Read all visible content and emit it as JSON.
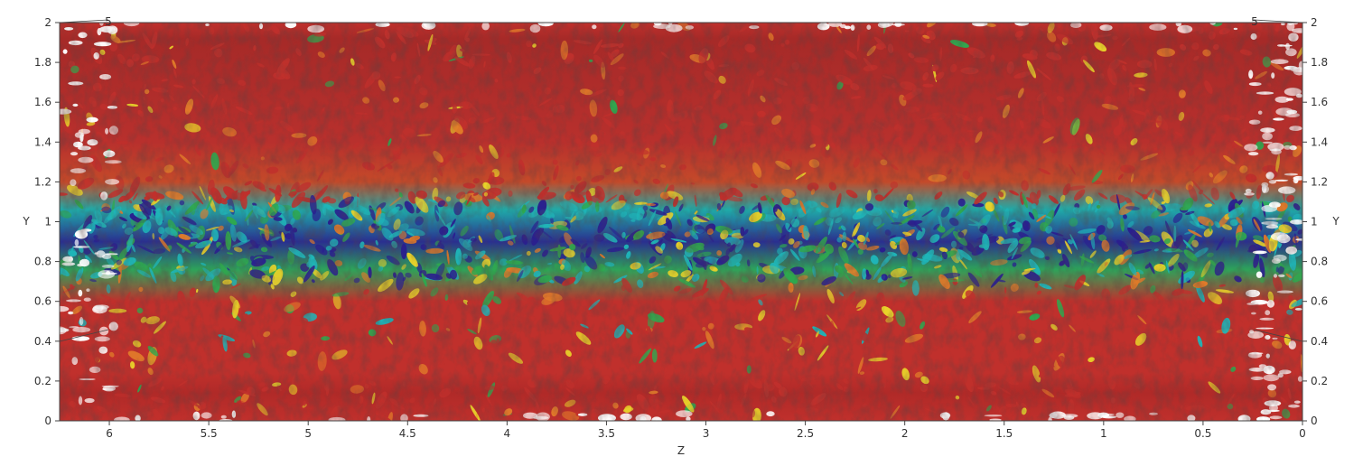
{
  "figure": {
    "description_type": "3d-isosurface-render",
    "colormap": [
      "#2a1f8f",
      "#1fb5b8",
      "#2fa84f",
      "#e8d22a",
      "#e07a2a",
      "#c0302c"
    ],
    "background": "#ffffff",
    "frame_color": "#444444"
  },
  "axes": {
    "x": {
      "label": "Z",
      "range": [
        6.25,
        0
      ],
      "ticks": [
        "6",
        "5.5",
        "5",
        "4.5",
        "4",
        "3.5",
        "3",
        "2.5",
        "2",
        "1.5",
        "1",
        "0.5",
        "0"
      ],
      "tick_values": [
        6,
        5.5,
        5,
        4.5,
        4,
        3.5,
        3,
        2.5,
        2,
        1.5,
        1,
        0.5,
        0
      ]
    },
    "y_left": {
      "label": "Y",
      "range": [
        0,
        2
      ],
      "ticks": [
        "0",
        "0.2",
        "0.4",
        "0.6",
        "0.8",
        "1",
        "1.2",
        "1.4",
        "1.6",
        "1.8",
        "2"
      ],
      "tick_values": [
        0,
        0.2,
        0.4,
        0.6,
        0.8,
        1,
        1.2,
        1.4,
        1.6,
        1.8,
        2
      ]
    },
    "y_right": {
      "label": "Y",
      "ticks": [
        "0",
        "0.2",
        "0.4",
        "0.6",
        "0.8",
        "1",
        "1.2",
        "1.4",
        "1.6",
        "1.8",
        "2"
      ],
      "tick_values": [
        0,
        0.2,
        0.4,
        0.6,
        0.8,
        1,
        1.2,
        1.4,
        1.6,
        1.8,
        2
      ]
    },
    "top_corner_labels": [
      "5",
      "5"
    ]
  }
}
